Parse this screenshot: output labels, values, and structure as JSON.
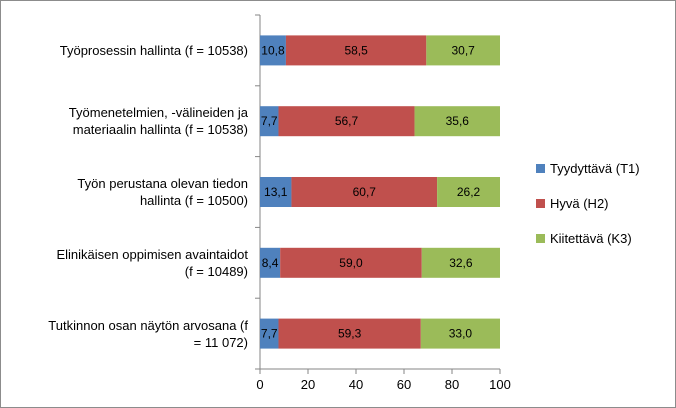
{
  "chart_data": {
    "type": "bar",
    "orientation": "horizontal",
    "stacked": true,
    "categories": [
      "Työprosessin hallinta (f = 10538)",
      "Työmenetelmien, -välineiden ja materiaalin hallinta (f = 10538)",
      "Työn perustana olevan tiedon hallinta (f = 10500)",
      "Elinikäisen oppimisen avaintaidot (f = 10489)",
      "Tutkinnon osan näytön arvosana (f = 11 072)"
    ],
    "category_lines": [
      [
        "Työprosessin hallinta (f = 10538)"
      ],
      [
        "Työmenetelmien, -välineiden ja",
        "materiaalin hallinta (f = 10538)"
      ],
      [
        "Työn perustana olevan tiedon",
        "hallinta (f = 10500)"
      ],
      [
        "Elinikäisen oppimisen avaintaidot",
        "(f = 10489)"
      ],
      [
        "Tutkinnon osan näytön arvosana (f",
        "= 11 072)"
      ]
    ],
    "series": [
      {
        "name": "Tyydyttävä (T1)",
        "color": "#4f81bd",
        "values": [
          10.8,
          7.7,
          13.1,
          8.4,
          7.7
        ],
        "labels": [
          "10,8",
          "7,7",
          "13,1",
          "8,4",
          "7,7"
        ]
      },
      {
        "name": "Hyvä (H2)",
        "color": "#c0504d",
        "values": [
          58.5,
          56.7,
          60.7,
          59.0,
          59.3
        ],
        "labels": [
          "58,5",
          "56,7",
          "60,7",
          "59,0",
          "59,3"
        ]
      },
      {
        "name": "Kiitettävä (K3)",
        "color": "#9bbb59",
        "values": [
          30.7,
          35.6,
          26.2,
          32.6,
          33.0
        ],
        "labels": [
          "30,7",
          "35,6",
          "26,2",
          "32,6",
          "33,0"
        ]
      }
    ],
    "xlim": [
      0,
      100
    ],
    "xticks": [
      0,
      20,
      40,
      60,
      80,
      100
    ],
    "grid": false,
    "legend": "right",
    "title": "",
    "xlabel": "",
    "ylabel": ""
  }
}
